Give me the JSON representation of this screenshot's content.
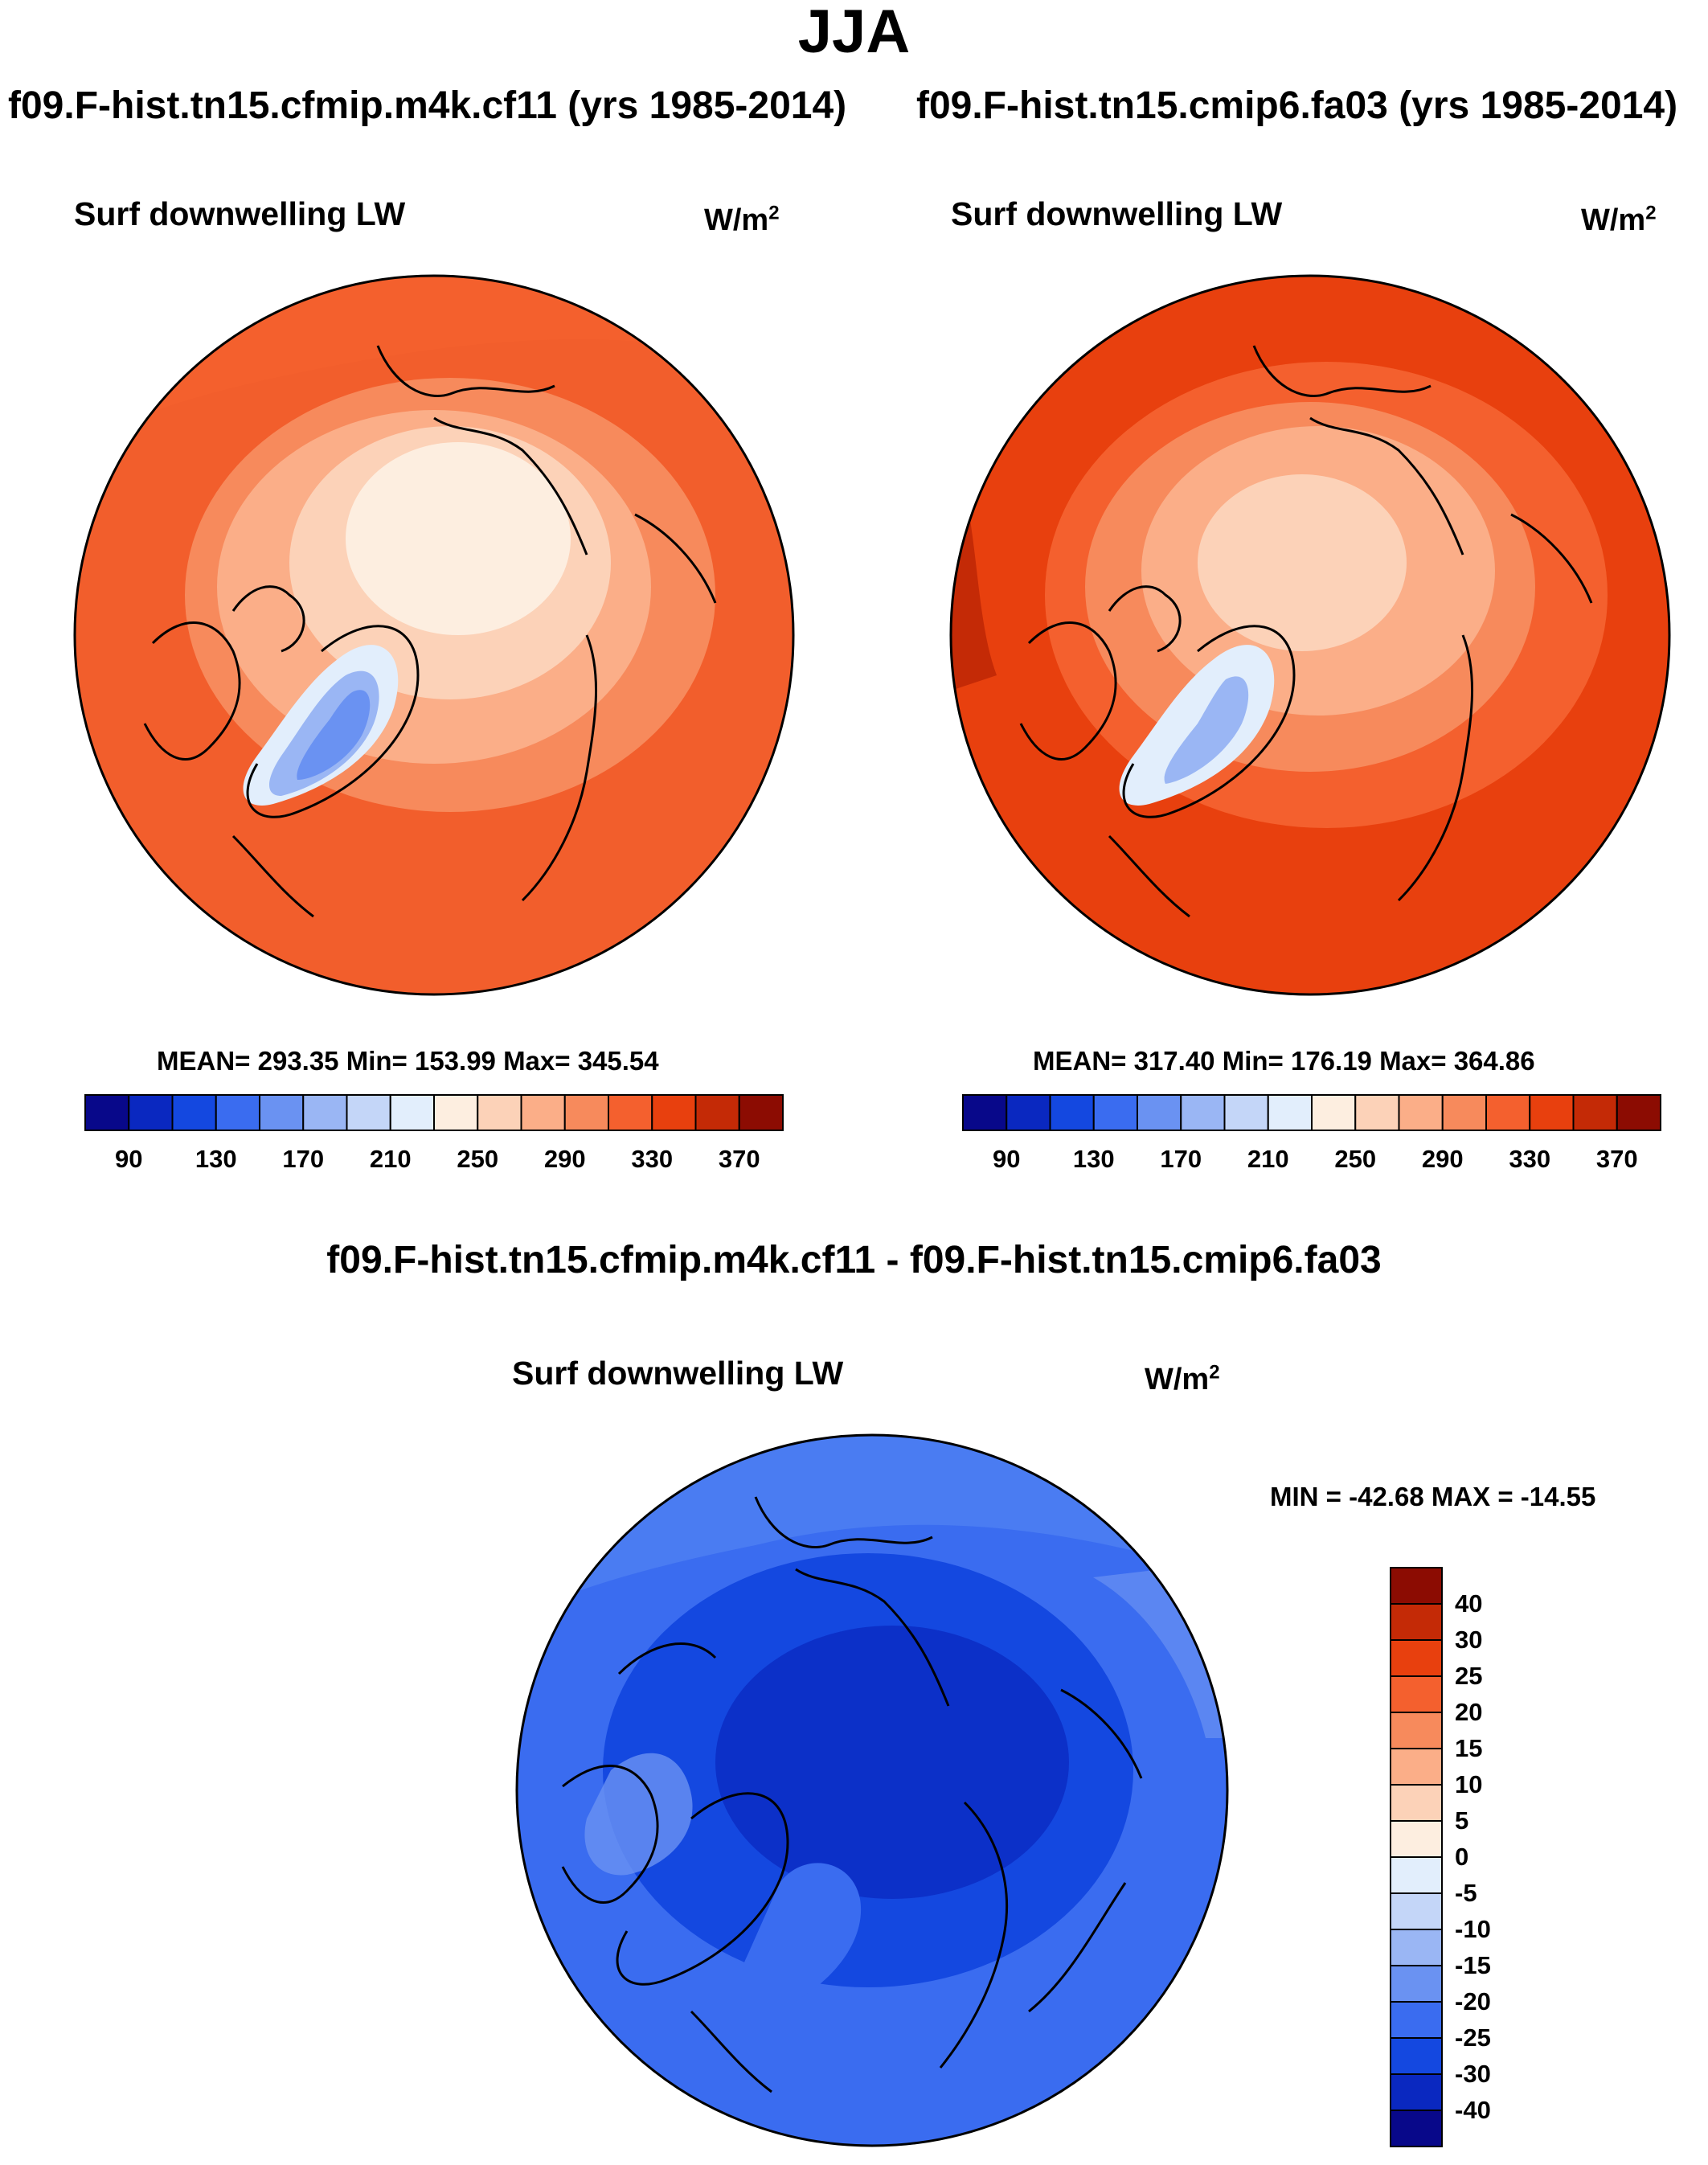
{
  "figure": {
    "season": "JJA",
    "diff_title": "f09.F-hist.tn15.cfmip.m4k.cf11 - f09.F-hist.tn15.cmip6.fa03"
  },
  "panels": {
    "left": {
      "case_title": "f09.F-hist.tn15.cfmip.m4k.cf11 (yrs 1985-2014)",
      "variable": "Surf downwelling LW",
      "units_base": "W/m",
      "units_exp": "2",
      "stats": "MEAN= 293.35  Min= 153.99  Max= 345.54"
    },
    "right": {
      "case_title": "f09.F-hist.tn15.cmip6.fa03 (yrs 1985-2014)",
      "variable": "Surf downwelling LW",
      "units_base": "W/m",
      "units_exp": "2",
      "stats": "MEAN= 317.40  Min= 176.19  Max= 364.86"
    },
    "diff": {
      "variable": "Surf downwelling LW",
      "units_base": "W/m",
      "units_exp": "2",
      "stats": "MIN = -42.68 MAX = -14.55"
    }
  },
  "colorbar_abs": {
    "colors": [
      "#08088a",
      "#0a28c0",
      "#1448e0",
      "#3a6cf0",
      "#6a92f2",
      "#9ab6f4",
      "#c4d6f8",
      "#e2eefc",
      "#fdeee0",
      "#fcd2b8",
      "#fbae88",
      "#f78a5c",
      "#f4602e",
      "#e8400e",
      "#c42a06",
      "#8c0c02"
    ],
    "tick_labels": [
      "90",
      "130",
      "170",
      "210",
      "250",
      "290",
      "330",
      "370"
    ]
  },
  "colorbar_diff": {
    "colors": [
      "#08088a",
      "#0a28c0",
      "#1448e0",
      "#3a6cf0",
      "#6a92f2",
      "#9ab6f4",
      "#c4d6f8",
      "#e2eefc",
      "#fdeee0",
      "#fcd2b8",
      "#fbae88",
      "#f78a5c",
      "#f4602e",
      "#e8400e",
      "#c42a06",
      "#8c0c02"
    ],
    "tick_labels": [
      "40",
      "30",
      "25",
      "20",
      "15",
      "10",
      "5",
      "0",
      "-5",
      "-10",
      "-15",
      "-20",
      "-25",
      "-30",
      "-40"
    ]
  }
}
